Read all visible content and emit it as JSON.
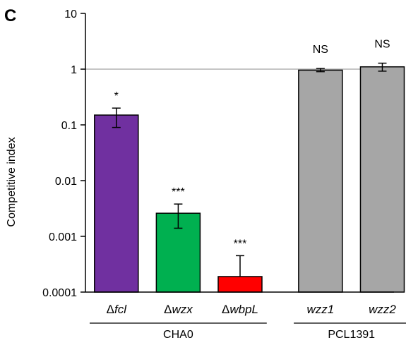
{
  "panel_label": "C",
  "chart_data": {
    "type": "bar",
    "title": "",
    "ylabel": "Competitive index",
    "xlabel": "",
    "yscale": "log",
    "ylim": [
      0.0001,
      10
    ],
    "yticks": [
      {
        "value": 10,
        "label": "10"
      },
      {
        "value": 1,
        "label": "1"
      },
      {
        "value": 0.1,
        "label": "0.1"
      },
      {
        "value": 0.01,
        "label": "0.01"
      },
      {
        "value": 0.001,
        "label": "0.001"
      },
      {
        "value": 0.0001,
        "label": "0.0001"
      }
    ],
    "reference_line": 1,
    "bars": [
      {
        "delta": "Δ",
        "name": "fcl",
        "value": 0.15,
        "err_low": 0.09,
        "err_high": 0.2,
        "significance": "*",
        "color": "#7030a0"
      },
      {
        "delta": "Δ",
        "name": "wzx",
        "value": 0.0026,
        "err_low": 0.0014,
        "err_high": 0.0038,
        "significance": "***",
        "color": "#00b050"
      },
      {
        "delta": "Δ",
        "name": "wbpL",
        "value": 0.00019,
        "err_low": null,
        "err_high": 0.00045,
        "significance": "***",
        "color": "#ff0000"
      },
      {
        "delta": "",
        "name": "wzz1",
        "value": 0.96,
        "err_low": 0.9,
        "err_high": 1.03,
        "significance": "NS",
        "color": "#a6a6a6"
      },
      {
        "delta": "",
        "name": "wzz2",
        "value": 1.1,
        "err_low": 0.92,
        "err_high": 1.28,
        "significance": "NS",
        "color": "#a6a6a6"
      }
    ],
    "groups": [
      {
        "label": "CHA0",
        "bars": [
          0,
          1,
          2
        ]
      },
      {
        "label": "PCL1391",
        "bars": [
          3,
          4
        ]
      }
    ]
  }
}
